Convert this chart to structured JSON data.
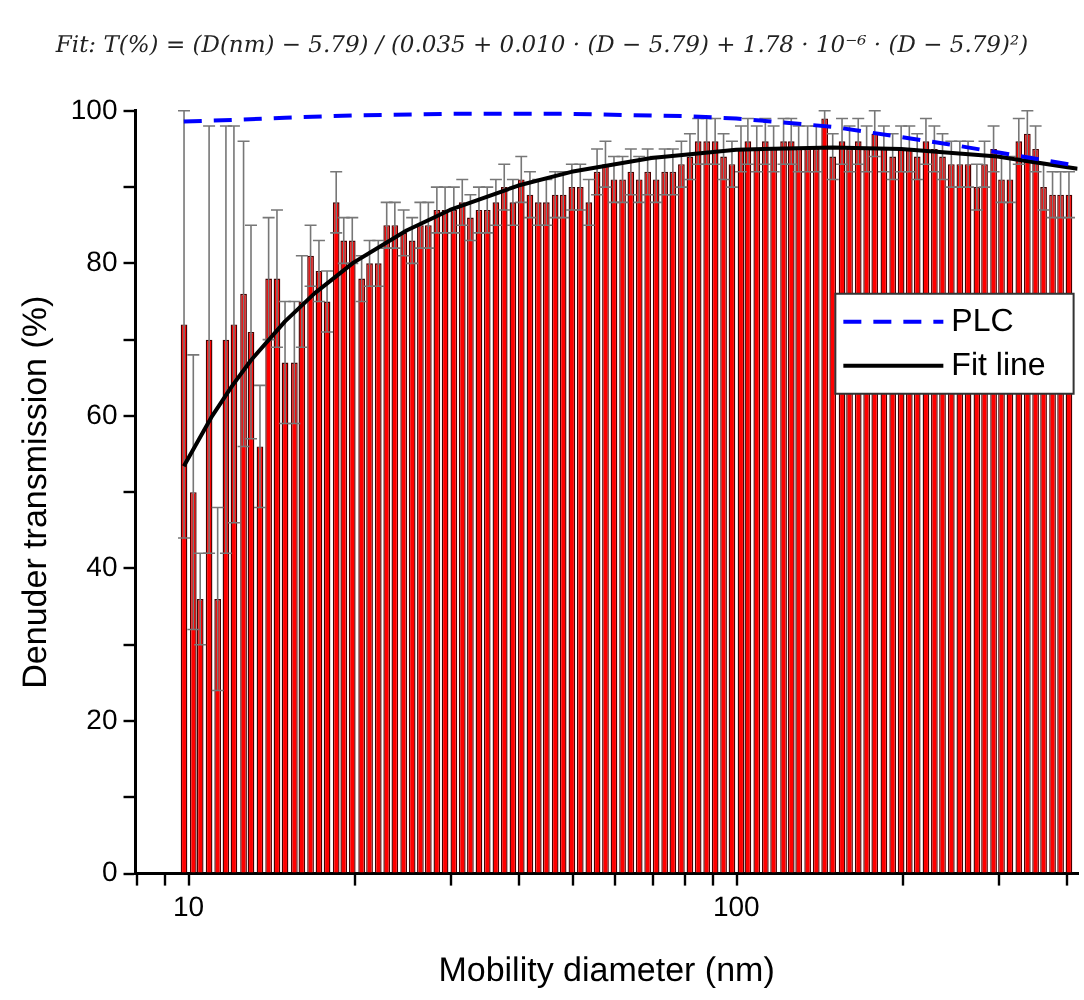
{
  "chart_data": {
    "type": "bar",
    "title": "Fit: T(%) = (D(nm) − 5.79) / (0.035 + 0.010 · (D − 5.79) + 1.78 · 10⁻⁶ · (D − 5.79)²)",
    "xlabel": "Mobility diameter (nm)",
    "ylabel": "Denuder transmission (%)",
    "log": "x",
    "xlim": [
      8,
      420
    ],
    "ylim": [
      0,
      100
    ],
    "xticks": [
      {
        "value": 8,
        "label": null
      },
      {
        "value": 9,
        "label": null
      },
      10,
      {
        "value": 20,
        "label": null
      },
      {
        "value": 30,
        "label": null
      },
      {
        "value": 40,
        "label": null
      },
      {
        "value": 50,
        "label": null
      },
      {
        "value": 60,
        "label": null
      },
      {
        "value": 70,
        "label": null
      },
      {
        "value": 80,
        "label": null
      },
      {
        "value": 90,
        "label": null
      },
      100,
      {
        "value": 200,
        "label": null
      },
      {
        "value": 300,
        "label": null
      },
      {
        "value": 400,
        "label": null
      }
    ],
    "yticks": [
      0,
      {
        "value": 10,
        "label": null
      },
      20,
      {
        "value": 30,
        "label": null
      },
      40,
      {
        "value": 50,
        "label": null
      },
      60,
      {
        "value": 70,
        "label": null
      },
      80,
      {
        "value": 90,
        "label": null
      },
      100
    ],
    "grid": false,
    "legend": "right",
    "marker": "none",
    "x": [
      9.81,
      10.2,
      10.5,
      10.9,
      11.3,
      11.7,
      12.1,
      12.6,
      13.0,
      13.5,
      14.0,
      14.5,
      15.0,
      15.6,
      16.1,
      16.7,
      17.3,
      17.9,
      18.6,
      19.2,
      19.9,
      20.7,
      21.4,
      22.2,
      23.0,
      23.8,
      24.7,
      25.6,
      26.5,
      27.4,
      28.4,
      29.4,
      30.5,
      31.6,
      32.7,
      33.9,
      35.1,
      36.4,
      37.7,
      39.1,
      40.5,
      42.0,
      43.5,
      45.0,
      46.7,
      48.3,
      50.1,
      51.9,
      53.8,
      55.7,
      57.7,
      59.8,
      62.0,
      64.2,
      66.5,
      68.9,
      71.4,
      74.0,
      76.6,
      79.4,
      82.3,
      85.2,
      88.3,
      91.5,
      94.8,
      98.2,
      102,
      105,
      109,
      113,
      117,
      122,
      126,
      130,
      135,
      140,
      145,
      150,
      156,
      161,
      167,
      173,
      179,
      186,
      193,
      200,
      207,
      214,
      222,
      230,
      238,
      247,
      256,
      265,
      275,
      284,
      295,
      305,
      316,
      328,
      340,
      352,
      364,
      378,
      391,
      405
    ],
    "series": [
      {
        "color": "#ff0000",
        "values": [
          72,
          50,
          36,
          70,
          36,
          70,
          72,
          76,
          71,
          56,
          78,
          78,
          67,
          67,
          75,
          81,
          79,
          75,
          88,
          83,
          83,
          78,
          80,
          80,
          85,
          85,
          84,
          83,
          85,
          85,
          87,
          87,
          87,
          88,
          86,
          87,
          87,
          88,
          90,
          88,
          91,
          89,
          88,
          88,
          89,
          89,
          90,
          90,
          88,
          92,
          93,
          91,
          91,
          92,
          91,
          92,
          91,
          92,
          92,
          93,
          94,
          96,
          96,
          96,
          94,
          93,
          95,
          96,
          95,
          96,
          95,
          96,
          96,
          95,
          95,
          95,
          99,
          94,
          96,
          95,
          96,
          95,
          97,
          95,
          94,
          95,
          95,
          94,
          96,
          95,
          94,
          93,
          93,
          93,
          90,
          93,
          95,
          91,
          91,
          96,
          97,
          95,
          90,
          89,
          89,
          89
        ],
        "errors": [
          28,
          18,
          6,
          28,
          12,
          28,
          26,
          20,
          14,
          8,
          8,
          9,
          8,
          8,
          6,
          4,
          4,
          4,
          4,
          3,
          3,
          3,
          3,
          3,
          3,
          3,
          3,
          3,
          3,
          3,
          3,
          3,
          3,
          3,
          3,
          3,
          3,
          3,
          3,
          3,
          3,
          3,
          3,
          3,
          3,
          3,
          3,
          3,
          3,
          3,
          3,
          3,
          3,
          3,
          3,
          3,
          3,
          3,
          3,
          3,
          3,
          3,
          3,
          3,
          3,
          3,
          3,
          3,
          3,
          3,
          3,
          3,
          3,
          3,
          3,
          3,
          1,
          3,
          3,
          3,
          3,
          3,
          3,
          3,
          3,
          3,
          3,
          3,
          3,
          3,
          3,
          3,
          3,
          3,
          3,
          3,
          3,
          3,
          3,
          3,
          3,
          3,
          3,
          3,
          3,
          3
        ]
      },
      {
        "type": "line",
        "name": "PLC",
        "color": "#0000ff",
        "line_style": "dashed",
        "x": [
          9.8,
          12,
          15,
          20,
          30,
          50,
          80,
          100,
          150,
          250,
          420
        ],
        "values": [
          98.6,
          98.8,
          99.1,
          99.4,
          99.6,
          99.6,
          99.3,
          99.0,
          97.9,
          95.5,
          92.8
        ]
      },
      {
        "type": "line",
        "name": "Fit line",
        "color": "#000000",
        "line_style": "solid",
        "x": [
          9.8,
          11,
          12,
          13,
          15,
          17,
          20,
          25,
          30,
          40,
          50,
          70,
          100,
          150,
          200,
          300,
          420
        ],
        "values": [
          53.4,
          59.8,
          63.9,
          67.3,
          72.4,
          76.1,
          80.1,
          84.3,
          87.0,
          90.2,
          92.0,
          93.8,
          94.9,
          95.2,
          95.0,
          94.0,
          92.4
        ]
      }
    ]
  }
}
